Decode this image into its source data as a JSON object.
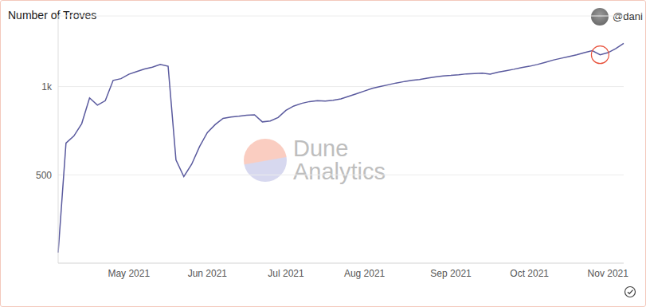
{
  "chart_data": {
    "type": "line",
    "title": "Number of Troves",
    "author": "@dani",
    "watermark": "Dune Analytics",
    "categories": [
      null,
      null,
      null,
      null,
      null,
      null,
      null,
      null,
      null,
      "May 2021",
      null,
      null,
      null,
      null,
      null,
      null,
      null,
      null,
      null,
      "Jun 2021",
      null,
      null,
      null,
      null,
      null,
      null,
      null,
      null,
      null,
      "Jul 2021",
      null,
      null,
      null,
      null,
      null,
      null,
      null,
      null,
      null,
      "Aug 2021",
      null,
      null,
      null,
      null,
      null,
      null,
      null,
      null,
      null,
      null,
      "Sep 2021",
      null,
      null,
      null,
      null,
      null,
      null,
      null,
      null,
      null,
      "Oct 2021",
      null,
      null,
      null,
      null,
      null,
      null,
      null,
      null,
      null,
      "Nov 2021",
      null,
      null
    ],
    "series": [
      {
        "name": "Number of Troves",
        "color": "#5a5a9e",
        "values": [
          60,
          680,
          720,
          790,
          936,
          895,
          920,
          1035,
          1045,
          1070,
          1085,
          1100,
          1110,
          1125,
          1115,
          585,
          490,
          560,
          660,
          740,
          785,
          820,
          828,
          832,
          838,
          840,
          800,
          805,
          825,
          865,
          890,
          905,
          915,
          920,
          918,
          922,
          930,
          945,
          960,
          975,
          990,
          1000,
          1010,
          1020,
          1028,
          1035,
          1040,
          1048,
          1055,
          1060,
          1063,
          1067,
          1072,
          1074,
          1076,
          1070,
          1082,
          1090,
          1098,
          1108,
          1115,
          1125,
          1137,
          1150,
          1160,
          1170,
          1180,
          1192,
          1203,
          1180,
          1192,
          1215,
          1245
        ]
      }
    ],
    "ylim": [
      0,
      1400
    ],
    "yticks": [
      500,
      {
        "value": 1000,
        "label": "1k"
      }
    ],
    "grid": true
  }
}
